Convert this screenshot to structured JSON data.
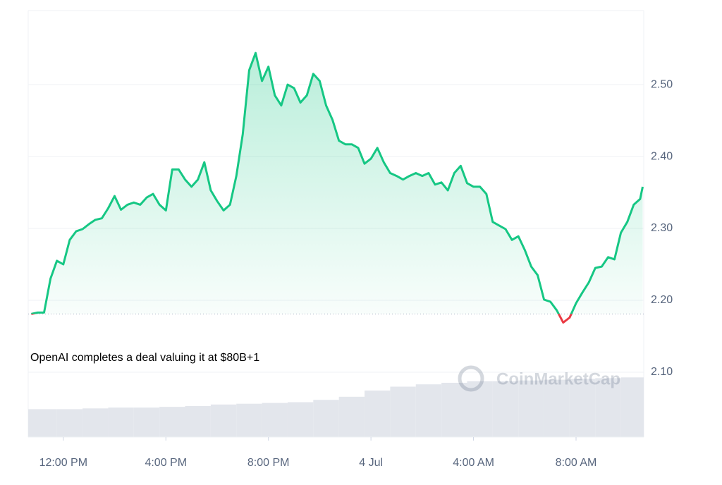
{
  "chart_data": {
    "type": "line",
    "annotation": "OpenAI completes a deal valuing it at $80B+1",
    "watermark": "CoinMarketCap",
    "x": [
      10.75,
      11,
      11.25,
      11.5,
      11.75,
      12,
      12.25,
      12.5,
      12.75,
      13,
      13.25,
      13.5,
      13.75,
      14,
      14.25,
      14.5,
      14.75,
      15,
      15.25,
      15.5,
      15.75,
      16,
      16.25,
      16.5,
      16.75,
      17,
      17.25,
      17.5,
      17.75,
      18,
      18.25,
      18.5,
      18.75,
      19,
      19.25,
      19.5,
      19.75,
      20,
      20.25,
      20.5,
      20.75,
      21,
      21.25,
      21.5,
      21.75,
      22,
      22.25,
      22.5,
      22.75,
      23,
      23.25,
      23.5,
      23.75,
      24,
      24.25,
      24.5,
      24.75,
      25,
      25.25,
      25.5,
      25.75,
      26,
      26.25,
      26.5,
      26.75,
      27,
      27.25,
      27.5,
      27.75,
      28,
      28.25,
      28.5,
      28.75,
      29,
      29.25,
      29.5,
      29.75,
      30,
      30.25,
      30.5,
      30.75,
      31,
      31.25,
      31.5,
      31.75,
      32,
      32.25,
      32.5,
      32.75,
      33,
      33.25,
      33.5,
      33.75,
      34,
      34.25,
      34.5,
      34.6
    ],
    "series": [
      {
        "name": "Price",
        "color": "#16c784",
        "below_color": "#ea3943",
        "values": [
          2.181,
          2.183,
          2.183,
          2.23,
          2.255,
          2.25,
          2.284,
          2.296,
          2.299,
          2.306,
          2.312,
          2.314,
          2.328,
          2.345,
          2.326,
          2.333,
          2.336,
          2.333,
          2.343,
          2.348,
          2.333,
          2.325,
          2.382,
          2.382,
          2.368,
          2.358,
          2.368,
          2.392,
          2.353,
          2.338,
          2.325,
          2.333,
          2.373,
          2.431,
          2.52,
          2.544,
          2.505,
          2.525,
          2.485,
          2.471,
          2.5,
          2.495,
          2.475,
          2.485,
          2.515,
          2.505,
          2.471,
          2.451,
          2.422,
          2.417,
          2.417,
          2.412,
          2.39,
          2.397,
          2.412,
          2.392,
          2.377,
          2.373,
          2.368,
          2.373,
          2.377,
          2.373,
          2.377,
          2.361,
          2.364,
          2.353,
          2.377,
          2.387,
          2.363,
          2.358,
          2.358,
          2.348,
          2.309,
          2.304,
          2.299,
          2.284,
          2.289,
          2.27,
          2.247,
          2.235,
          2.201,
          2.198,
          2.186,
          2.169,
          2.176,
          2.196,
          2.211,
          2.225,
          2.245,
          2.247,
          2.26,
          2.257,
          2.294,
          2.309,
          2.333,
          2.341,
          2.358
        ]
      }
    ],
    "baseline": 2.181,
    "volume": {
      "color": "#e3e6ec",
      "x": [
        10.75,
        11.75,
        12.75,
        13.75,
        14.75,
        15.75,
        16.75,
        17.75,
        18.75,
        19.75,
        20.75,
        21.75,
        22.75,
        23.75,
        24.75,
        25.75,
        26.75,
        27.75,
        28.75,
        29.75,
        30.75,
        31.75,
        32.75,
        33.75
      ],
      "values": [
        36,
        36,
        37,
        38,
        38,
        39,
        40,
        42,
        43,
        44,
        45,
        48,
        52,
        60,
        65,
        68,
        70,
        72,
        72,
        73,
        74,
        75,
        76,
        77
      ],
      "lim": [
        0,
        100
      ]
    },
    "xlim": [
      10.63,
      34.64
    ],
    "xticks": [
      {
        "value": 12,
        "label": "12:00 PM"
      },
      {
        "value": 16,
        "label": "4:00 PM"
      },
      {
        "value": 20,
        "label": "8:00 PM"
      },
      {
        "value": 24,
        "label": "4 Jul"
      },
      {
        "value": 28,
        "label": "4:00 AM"
      },
      {
        "value": 32,
        "label": "8:00 AM"
      }
    ],
    "ylim": [
      2.0098,
      2.603
    ],
    "yticks": [
      {
        "value": 2.1,
        "label": "2.10"
      },
      {
        "value": 2.2,
        "label": "2.20"
      },
      {
        "value": 2.3,
        "label": "2.30"
      },
      {
        "value": 2.4,
        "label": "2.40"
      },
      {
        "value": 2.5,
        "label": "2.50"
      }
    ],
    "grid": true
  }
}
